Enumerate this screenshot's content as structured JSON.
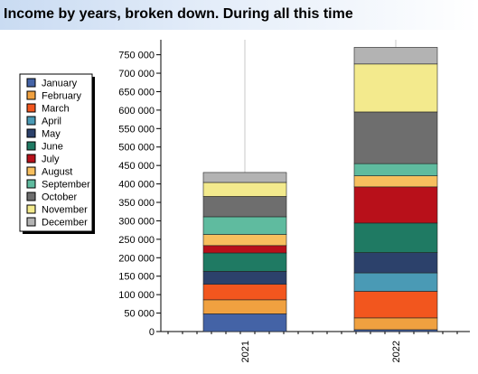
{
  "title": "Income by years, broken down. During all this time",
  "chart_data": {
    "type": "bar",
    "stacked": true,
    "categories": [
      "2021",
      "2022"
    ],
    "ylim": [
      0,
      775000
    ],
    "yticks": [
      0,
      50000,
      100000,
      150000,
      200000,
      250000,
      300000,
      350000,
      400000,
      450000,
      500000,
      550000,
      600000,
      650000,
      700000,
      750000
    ],
    "ytick_labels": [
      "0",
      "50 000",
      "100 000",
      "150 000",
      "200 000",
      "250 000",
      "300 000",
      "350 000",
      "400 000",
      "450 000",
      "500 000",
      "550 000",
      "600 000",
      "650 000",
      "700 000",
      "750 000"
    ],
    "legend_position": "left",
    "grid": "vertical",
    "series": [
      {
        "name": "January",
        "color": "#4463a6",
        "values": [
          48000,
          5000
        ]
      },
      {
        "name": "February",
        "color": "#f0a140",
        "values": [
          38000,
          32000
        ]
      },
      {
        "name": "March",
        "color": "#f2561e",
        "values": [
          42000,
          72000
        ]
      },
      {
        "name": "April",
        "color": "#4a9ab5",
        "values": [
          0,
          50000
        ]
      },
      {
        "name": "May",
        "color": "#2c416b",
        "values": [
          35000,
          55000
        ]
      },
      {
        "name": "June",
        "color": "#1f7a63",
        "values": [
          50000,
          80000
        ]
      },
      {
        "name": "July",
        "color": "#b8101a",
        "values": [
          20000,
          98000
        ]
      },
      {
        "name": "August",
        "color": "#f7bf5e",
        "values": [
          30000,
          30000
        ]
      },
      {
        "name": "September",
        "color": "#5fbb9f",
        "values": [
          48000,
          33000
        ]
      },
      {
        "name": "October",
        "color": "#6e6e6e",
        "values": [
          55000,
          140000
        ]
      },
      {
        "name": "November",
        "color": "#f3ea8d",
        "values": [
          38000,
          130000
        ]
      },
      {
        "name": "December",
        "color": "#b3b3b3",
        "values": [
          27000,
          45000
        ]
      }
    ]
  }
}
